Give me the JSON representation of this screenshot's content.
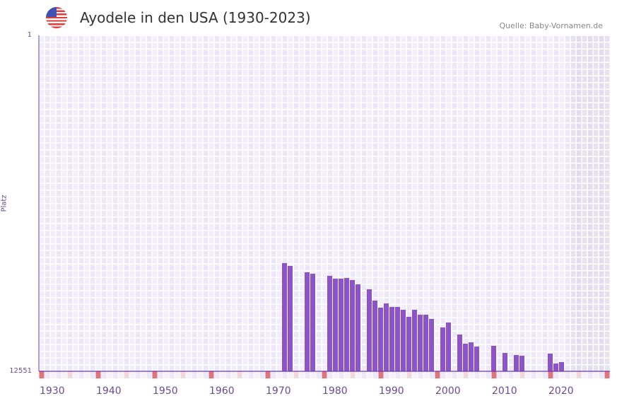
{
  "header": {
    "title": "Ayodele in den USA (1930-2023)",
    "flag_icon": "us-flag-icon",
    "source": "Quelle: Baby-Vornamen.de"
  },
  "chart_data": {
    "type": "bar",
    "title": "Ayodele in den USA (1930-2023)",
    "xlabel": "",
    "ylabel": "Platz",
    "xlim": [
      1930,
      2030
    ],
    "ylim": [
      12551,
      1
    ],
    "y_tick_labels": [
      "1",
      "12551"
    ],
    "x_tick_labels": [
      "1930",
      "1940",
      "1950",
      "1960",
      "1970",
      "1980",
      "1990",
      "2000",
      "2010",
      "2020"
    ],
    "future_shaded_from": 2024,
    "bar_color": "#8c54c8",
    "decade_marker_color": "#e8707a",
    "half_decade_marker_color": "#f3d6e0",
    "x": [
      1973,
      1974,
      1977,
      1978,
      1981,
      1982,
      1983,
      1984,
      1985,
      1986,
      1988,
      1989,
      1990,
      1991,
      1992,
      1993,
      1994,
      1995,
      1996,
      1997,
      1998,
      1999,
      2001,
      2002,
      2004,
      2005,
      2006,
      2007,
      2010,
      2012,
      2014,
      2015,
      2020,
      2021,
      2022
    ],
    "values": [
      8509,
      8614,
      8852,
      8905,
      8984,
      9090,
      9090,
      9063,
      9142,
      9301,
      9486,
      9909,
      10173,
      10015,
      10146,
      10146,
      10252,
      10516,
      10252,
      10437,
      10437,
      10595,
      10913,
      10728,
      11177,
      11520,
      11468,
      11626,
      11600,
      11864,
      11943,
      11970,
      11890,
      12260,
      12207
    ]
  }
}
